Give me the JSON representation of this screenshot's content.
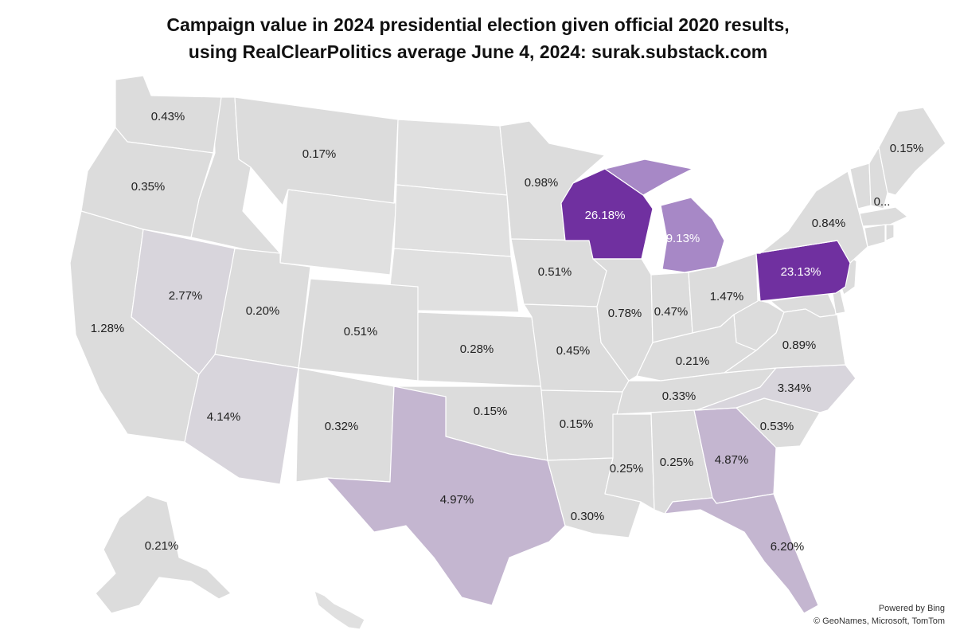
{
  "title": {
    "line1": "Campaign value in 2024 presidential election given official 2020 results,",
    "line2": "using RealClearPolitics average June 4, 2024: surak.substack.com"
  },
  "attribution": {
    "powered_by": "Powered by Bing",
    "copyright": "© GeoNames, Microsoft, TomTom"
  },
  "colors": {
    "lowest": "#dcdcdc",
    "low": "#d8d5dc",
    "mid": "#c4b6d0",
    "high": "#a788c6",
    "highest": "#7030a0",
    "label_dark": "#222222",
    "label_light": "#ffffff"
  },
  "chart_data": {
    "type": "choropleth",
    "unit": "%",
    "states": [
      {
        "state": "WA",
        "value": "0.43%"
      },
      {
        "state": "OR",
        "value": "0.35%"
      },
      {
        "state": "CA",
        "value": "1.28%"
      },
      {
        "state": "NV",
        "value": "2.77%"
      },
      {
        "state": "MT",
        "value": "0.17%"
      },
      {
        "state": "UT",
        "value": "0.20%"
      },
      {
        "state": "AZ",
        "value": "4.14%"
      },
      {
        "state": "CO",
        "value": "0.51%"
      },
      {
        "state": "NM",
        "value": "0.32%"
      },
      {
        "state": "KS",
        "value": "0.28%"
      },
      {
        "state": "OK",
        "value": "0.15%"
      },
      {
        "state": "TX",
        "value": "4.97%"
      },
      {
        "state": "MN",
        "value": "0.98%"
      },
      {
        "state": "IA",
        "value": "0.51%"
      },
      {
        "state": "MO",
        "value": "0.45%"
      },
      {
        "state": "AR",
        "value": "0.15%"
      },
      {
        "state": "LA",
        "value": "0.30%"
      },
      {
        "state": "WI",
        "value": "26.18%"
      },
      {
        "state": "IL",
        "value": "0.78%"
      },
      {
        "state": "MI",
        "value": "9.13%"
      },
      {
        "state": "IN",
        "value": "0.47%"
      },
      {
        "state": "OH",
        "value": "1.47%"
      },
      {
        "state": "KY",
        "value": "0.21%"
      },
      {
        "state": "TN",
        "value": "0.33%"
      },
      {
        "state": "MS",
        "value": "0.25%"
      },
      {
        "state": "AL",
        "value": "0.25%"
      },
      {
        "state": "GA",
        "value": "4.87%"
      },
      {
        "state": "FL",
        "value": "6.20%"
      },
      {
        "state": "SC",
        "value": "0.53%"
      },
      {
        "state": "NC",
        "value": "3.34%"
      },
      {
        "state": "VA",
        "value": "0.89%"
      },
      {
        "state": "PA",
        "value": "23.13%"
      },
      {
        "state": "NY",
        "value": "0.84%"
      },
      {
        "state": "NH",
        "value": "0..."
      },
      {
        "state": "ME",
        "value": "0.15%"
      },
      {
        "state": "AK",
        "value": "0.21%"
      }
    ]
  }
}
